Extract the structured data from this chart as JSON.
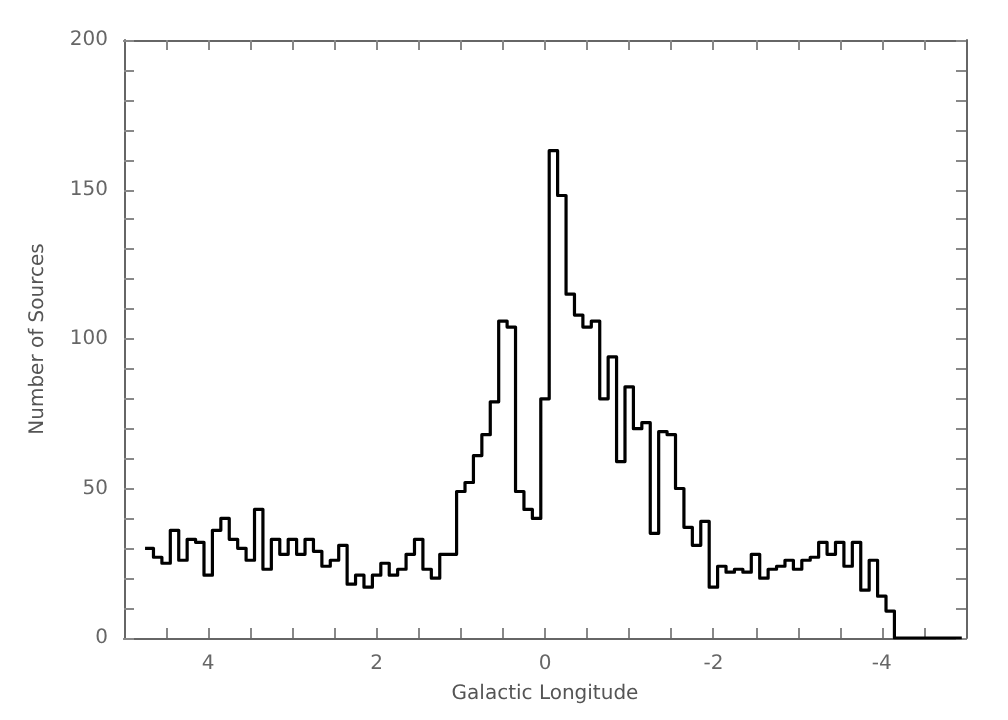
{
  "chart_data": {
    "type": "histogram",
    "xlabel": "Galactic Longitude",
    "ylabel": "Number of Sources",
    "color": "#000000",
    "bins": [
      4.75,
      4.65,
      4.55,
      4.45,
      4.35,
      4.25,
      4.15,
      4.05,
      3.95,
      3.85,
      3.75,
      3.65,
      3.55,
      3.45,
      3.35,
      3.25,
      3.15,
      3.05,
      2.95,
      2.85,
      2.75,
      2.65,
      2.55,
      2.45,
      2.35,
      2.25,
      2.15,
      2.05,
      1.95,
      1.85,
      1.75,
      1.65,
      1.55,
      1.45,
      1.35,
      1.25,
      1.15,
      1.05,
      0.95,
      0.85,
      0.75,
      0.65,
      0.55,
      0.45,
      0.35,
      0.25,
      0.15,
      0.05,
      -0.05,
      -0.15,
      -0.25,
      -0.35,
      -0.45,
      -0.55,
      -0.65,
      -0.75,
      -0.85,
      -0.95,
      -1.05,
      -1.15,
      -1.25,
      -1.35,
      -1.45,
      -1.55,
      -1.65,
      -1.75,
      -1.85,
      -1.95,
      -2.05,
      -2.15,
      -2.25,
      -2.35,
      -2.45,
      -2.55,
      -2.65,
      -2.75,
      -2.85,
      -2.95,
      -3.05,
      -3.15,
      -3.25,
      -3.35,
      -3.45,
      -3.55,
      -3.65,
      -3.75,
      -3.85,
      -3.95,
      -4.05,
      -4.15,
      -4.25,
      -4.35,
      -4.45,
      -4.55,
      -4.65,
      -4.75,
      -4.85,
      -4.95
    ],
    "values": [
      30,
      27,
      25,
      36,
      26,
      33,
      32,
      21,
      36,
      40,
      33,
      30,
      26,
      43,
      23,
      33,
      28,
      33,
      28,
      33,
      29,
      24,
      26,
      31,
      18,
      21,
      17,
      21,
      25,
      21,
      23,
      28,
      33,
      23,
      20,
      28,
      28,
      49,
      52,
      61,
      68,
      79,
      106,
      104,
      49,
      43,
      40,
      80,
      163,
      148,
      115,
      108,
      104,
      106,
      80,
      94,
      59,
      84,
      70,
      72,
      35,
      69,
      68,
      50,
      37,
      31,
      39,
      17,
      24,
      22,
      23,
      22,
      28,
      20,
      23,
      24,
      26,
      23,
      26,
      27,
      32,
      28,
      32,
      24,
      32,
      16,
      26,
      14,
      9,
      0,
      0,
      0,
      0,
      0,
      0,
      0,
      0
    ],
    "xlim": [
      5,
      -5
    ],
    "xticks": [
      {
        "value": 4.5,
        "label": null
      },
      4,
      {
        "value": 3.5,
        "label": null
      },
      {
        "value": 3,
        "label": null
      },
      {
        "value": 2.5,
        "label": null
      },
      2,
      {
        "value": 1.5,
        "label": null
      },
      {
        "value": 1,
        "label": null
      },
      {
        "value": 0.5,
        "label": null
      },
      0,
      {
        "value": -0.5,
        "label": null
      },
      {
        "value": -1,
        "label": null
      },
      {
        "value": -1.5,
        "label": null
      },
      -2,
      {
        "value": -2.5,
        "label": null
      },
      {
        "value": -3,
        "label": null
      },
      {
        "value": -3.5,
        "label": null
      },
      -4,
      {
        "value": -4.5,
        "label": null
      }
    ],
    "ylim": [
      0,
      200
    ],
    "yticks": [
      0,
      {
        "value": 10,
        "label": null
      },
      {
        "value": 20,
        "label": null
      },
      {
        "value": 30,
        "label": null
      },
      {
        "value": 40,
        "label": null
      },
      50,
      {
        "value": 60,
        "label": null
      },
      {
        "value": 70,
        "label": null
      },
      {
        "value": 80,
        "label": null
      },
      {
        "value": 90,
        "label": null
      },
      100,
      {
        "value": 110,
        "label": null
      },
      {
        "value": 120,
        "label": null
      },
      {
        "value": 130,
        "label": null
      },
      {
        "value": 140,
        "label": null
      },
      150,
      {
        "value": 160,
        "label": null
      },
      {
        "value": 170,
        "label": null
      },
      {
        "value": 180,
        "label": null
      },
      {
        "value": 190,
        "label": null
      },
      200
    ],
    "grid": false
  }
}
